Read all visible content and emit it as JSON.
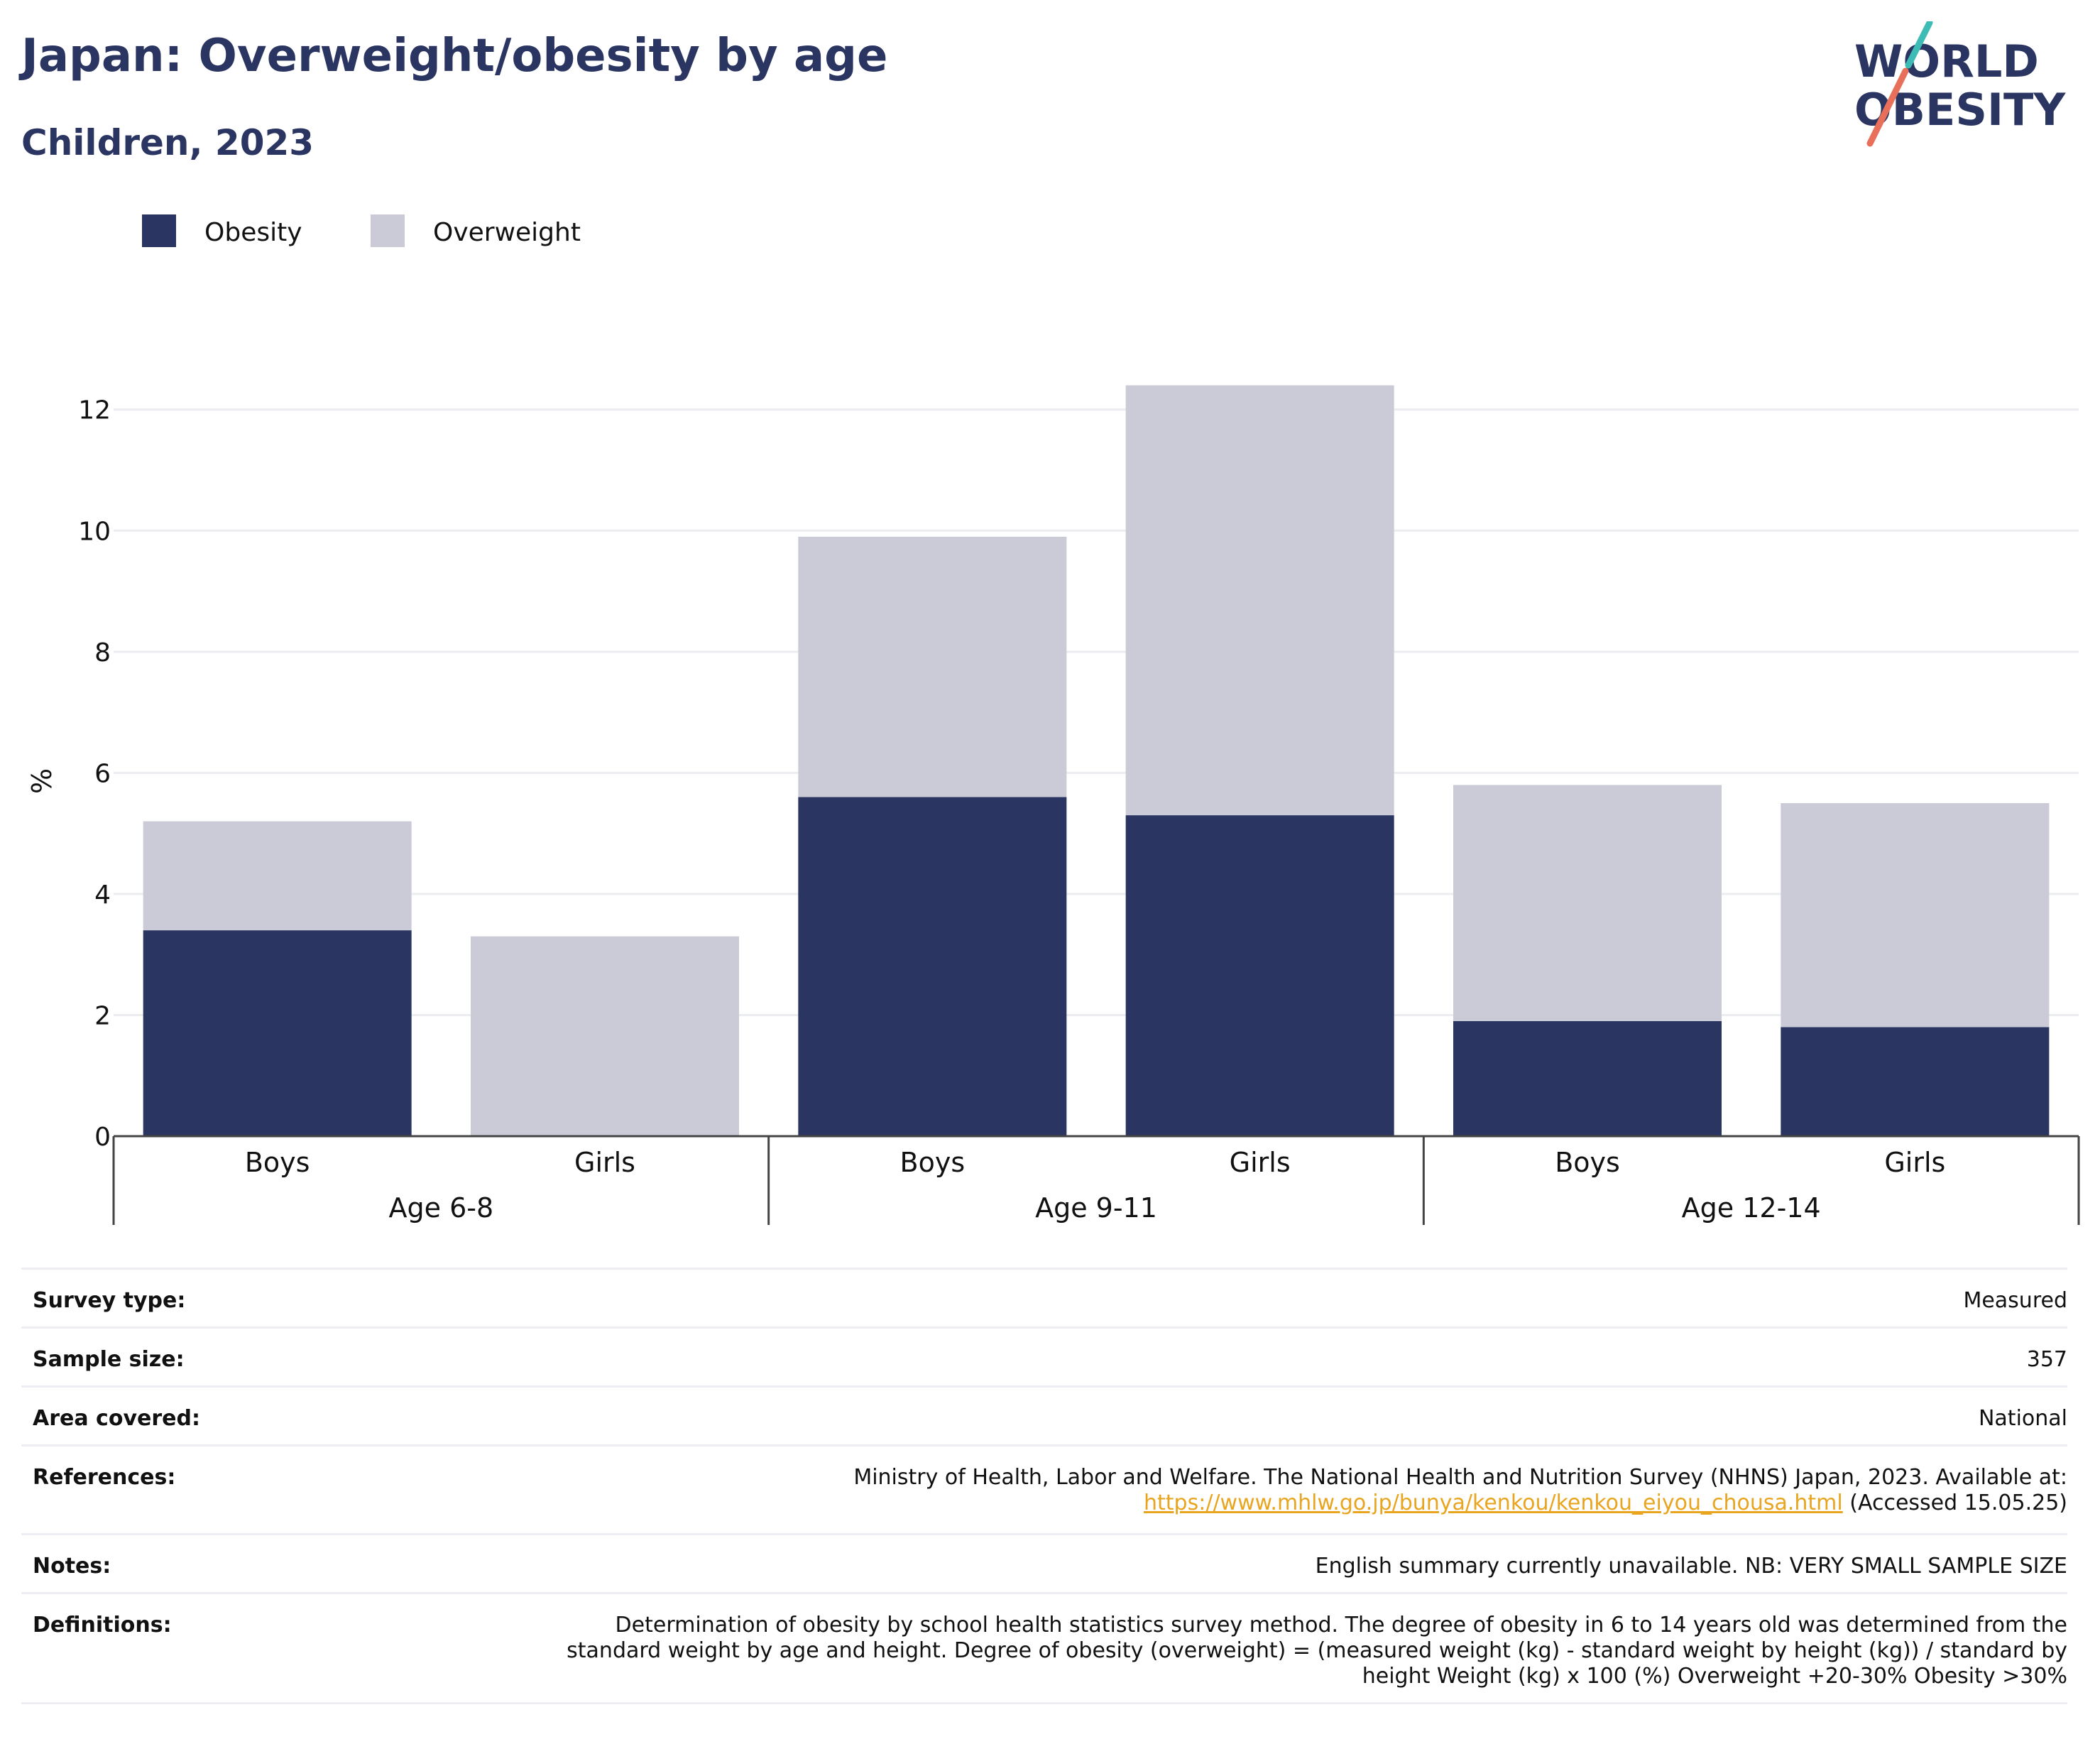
{
  "title": "Japan: Overweight/obesity by age",
  "subtitle": "Children, 2023",
  "logo": {
    "line1": "WORLD",
    "line2": "OBESITY"
  },
  "colors": {
    "obesity": "#2b3562",
    "overweight": "#cacbd7",
    "title": "#2b3562",
    "link": "#e9a51f"
  },
  "chart_data": {
    "type": "bar",
    "stacked": true,
    "title": "",
    "ylabel": "%",
    "ylim": [
      0,
      12.9
    ],
    "yticks": [
      0,
      2,
      4,
      6,
      8,
      10,
      12
    ],
    "grid": true,
    "legend_position": "top-left",
    "groups": [
      {
        "label": "Age 6-8",
        "categories": [
          "Boys",
          "Girls"
        ]
      },
      {
        "label": "Age 9-11",
        "categories": [
          "Boys",
          "Girls"
        ]
      },
      {
        "label": "Age 12-14",
        "categories": [
          "Boys",
          "Girls"
        ]
      }
    ],
    "categories": [
      "Boys",
      "Girls",
      "Boys",
      "Girls",
      "Boys",
      "Girls"
    ],
    "series": [
      {
        "name": "Obesity",
        "color": "#2b3562",
        "values": [
          3.4,
          0,
          5.6,
          5.3,
          1.9,
          1.8
        ]
      },
      {
        "name": "Overweight",
        "color": "#cacbd7",
        "values": [
          1.8,
          3.3,
          4.3,
          7.1,
          3.9,
          3.7
        ]
      }
    ]
  },
  "info": [
    {
      "key": "Survey type:",
      "value": "Measured"
    },
    {
      "key": "Sample size:",
      "value": "357"
    },
    {
      "key": "Area covered:",
      "value": "National"
    },
    {
      "key": "References:",
      "value": "Ministry of Health, Labor and Welfare. The National Health and Nutrition Survey (NHNS) Japan, 2023. Available at:",
      "link": "https://www.mhlw.go.jp/bunya/kenkou/kenkou_eiyou_chousa.html",
      "suffix": " (Accessed 15.05.25)"
    },
    {
      "key": "Notes:",
      "value": "English summary currently unavailable. NB: VERY SMALL SAMPLE SIZE"
    },
    {
      "key": "Definitions:",
      "value": "Determination of obesity by school health statistics survey method. The degree of obesity in 6 to 14 years old was determined from the standard weight by age and height. Degree of obesity (overweight) = (measured weight (kg) - standard weight by height (kg)) / standard by height Weight (kg) x 100 (%) Overweight +20-30% Obesity >30%"
    }
  ]
}
